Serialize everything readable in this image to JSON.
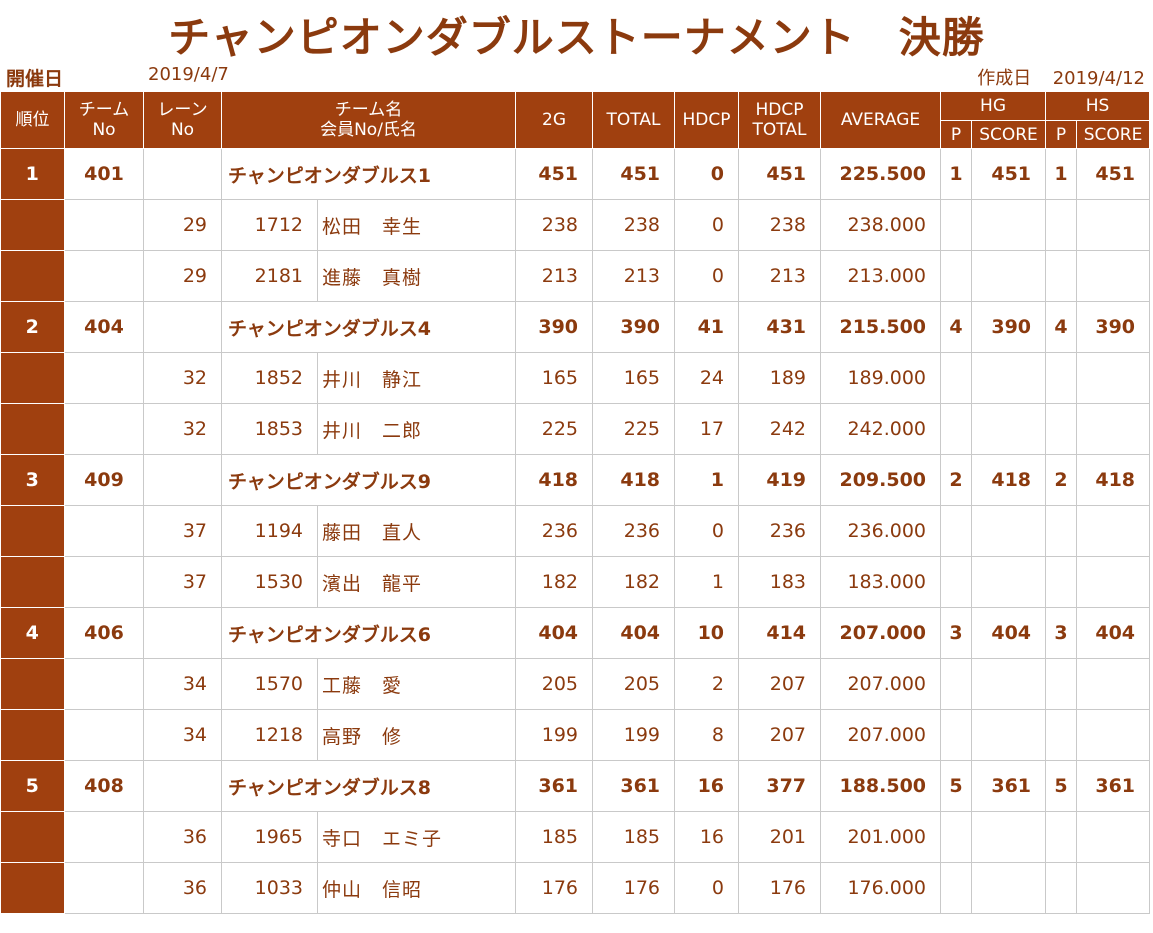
{
  "title": "チャンピオンダブルストーナメント　決勝",
  "held_label": "開催日",
  "held_date": "2019/4/7",
  "created_label": "作成日",
  "created_date": "2019/4/12",
  "headers": {
    "rank": "順位",
    "team_no_1": "チーム",
    "team_no_2": "No",
    "lane_no_1": "レーン",
    "lane_no_2": "No",
    "team_name_1": "チーム名",
    "team_name_2": "会員No/氏名",
    "g2": "2G",
    "total": "TOTAL",
    "hdcp": "HDCP",
    "hdcp_total_1": "HDCP",
    "hdcp_total_2": "TOTAL",
    "average": "AVERAGE",
    "hg": "HG",
    "hs": "HS",
    "p": "P",
    "score": "SCORE"
  },
  "teams": [
    {
      "rank": "1",
      "team_no": "401",
      "name": "チャンピオンダブルス1",
      "g2": "451",
      "total": "451",
      "hdcp": "0",
      "hdcp_total": "451",
      "average": "225.500",
      "hg_p": "1",
      "hg_score": "451",
      "hs_p": "1",
      "hs_score": "451",
      "members": [
        {
          "lane": "29",
          "no": "1712",
          "name": "松田　幸生",
          "g2": "238",
          "total": "238",
          "hdcp": "0",
          "hdcp_total": "238",
          "average": "238.000"
        },
        {
          "lane": "29",
          "no": "2181",
          "name": "進藤　真樹",
          "g2": "213",
          "total": "213",
          "hdcp": "0",
          "hdcp_total": "213",
          "average": "213.000"
        }
      ]
    },
    {
      "rank": "2",
      "team_no": "404",
      "name": "チャンピオンダブルス4",
      "g2": "390",
      "total": "390",
      "hdcp": "41",
      "hdcp_total": "431",
      "average": "215.500",
      "hg_p": "4",
      "hg_score": "390",
      "hs_p": "4",
      "hs_score": "390",
      "members": [
        {
          "lane": "32",
          "no": "1852",
          "name": "井川　静江",
          "g2": "165",
          "total": "165",
          "hdcp": "24",
          "hdcp_total": "189",
          "average": "189.000"
        },
        {
          "lane": "32",
          "no": "1853",
          "name": "井川　二郎",
          "g2": "225",
          "total": "225",
          "hdcp": "17",
          "hdcp_total": "242",
          "average": "242.000"
        }
      ]
    },
    {
      "rank": "3",
      "team_no": "409",
      "name": "チャンピオンダブルス9",
      "g2": "418",
      "total": "418",
      "hdcp": "1",
      "hdcp_total": "419",
      "average": "209.500",
      "hg_p": "2",
      "hg_score": "418",
      "hs_p": "2",
      "hs_score": "418",
      "members": [
        {
          "lane": "37",
          "no": "1194",
          "name": "藤田　直人",
          "g2": "236",
          "total": "236",
          "hdcp": "0",
          "hdcp_total": "236",
          "average": "236.000"
        },
        {
          "lane": "37",
          "no": "1530",
          "name": "濱出　龍平",
          "g2": "182",
          "total": "182",
          "hdcp": "1",
          "hdcp_total": "183",
          "average": "183.000"
        }
      ]
    },
    {
      "rank": "4",
      "team_no": "406",
      "name": "チャンピオンダブルス6",
      "g2": "404",
      "total": "404",
      "hdcp": "10",
      "hdcp_total": "414",
      "average": "207.000",
      "hg_p": "3",
      "hg_score": "404",
      "hs_p": "3",
      "hs_score": "404",
      "members": [
        {
          "lane": "34",
          "no": "1570",
          "name": "工藤　愛",
          "g2": "205",
          "total": "205",
          "hdcp": "2",
          "hdcp_total": "207",
          "average": "207.000"
        },
        {
          "lane": "34",
          "no": "1218",
          "name": "高野　修",
          "g2": "199",
          "total": "199",
          "hdcp": "8",
          "hdcp_total": "207",
          "average": "207.000"
        }
      ]
    },
    {
      "rank": "5",
      "team_no": "408",
      "name": "チャンピオンダブルス8",
      "g2": "361",
      "total": "361",
      "hdcp": "16",
      "hdcp_total": "377",
      "average": "188.500",
      "hg_p": "5",
      "hg_score": "361",
      "hs_p": "5",
      "hs_score": "361",
      "members": [
        {
          "lane": "36",
          "no": "1965",
          "name": "寺口　エミ子",
          "g2": "185",
          "total": "185",
          "hdcp": "16",
          "hdcp_total": "201",
          "average": "201.000"
        },
        {
          "lane": "36",
          "no": "1033",
          "name": "仲山　信昭",
          "g2": "176",
          "total": "176",
          "hdcp": "0",
          "hdcp_total": "176",
          "average": "176.000"
        }
      ]
    }
  ]
}
